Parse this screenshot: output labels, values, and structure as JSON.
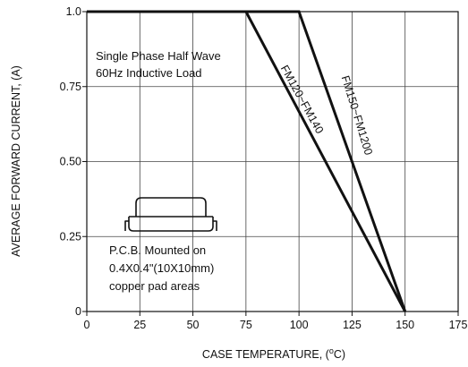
{
  "chart_data": {
    "type": "line",
    "title": "",
    "xlabel": "CASE TEMPERATURE, (°C)",
    "xlabel_prefix": "CASE TEMPERATURE, (",
    "xlabel_degree": "o",
    "xlabel_suffix": "C)",
    "ylabel": "AVERAGE FORWARD CURRENT, (A)",
    "xlim": [
      0,
      175
    ],
    "ylim": [
      0,
      1.0
    ],
    "x_ticks": [
      0,
      25,
      50,
      75,
      100,
      125,
      150,
      175
    ],
    "x_tick_labels": [
      "0",
      "25",
      "50",
      "75",
      "100",
      "125",
      "150",
      "175"
    ],
    "y_ticks": [
      0,
      0.25,
      0.5,
      0.75,
      1.0
    ],
    "y_tick_labels": [
      "0",
      "0.25",
      "0.50",
      "0.75",
      "1.0"
    ],
    "grid": true,
    "series": [
      {
        "name": "FM120~FM140",
        "x": [
          0,
          75,
          150
        ],
        "y": [
          1.0,
          1.0,
          0
        ]
      },
      {
        "name": "FM150~FM1200",
        "x": [
          0,
          100,
          150
        ],
        "y": [
          1.0,
          1.0,
          0
        ]
      }
    ],
    "annotations": {
      "condition_line1": "Single Phase Half Wave",
      "condition_line2": "60Hz Inductive Load",
      "mount_line1": "P.C.B. Mounted on",
      "mount_line2": "0.4X0.4\"(10X10mm)",
      "mount_line3": "copper pad areas"
    }
  },
  "colors": {
    "line": "#111111",
    "grid": "#444444",
    "background": "#ffffff"
  },
  "icon": "smd-package-icon"
}
